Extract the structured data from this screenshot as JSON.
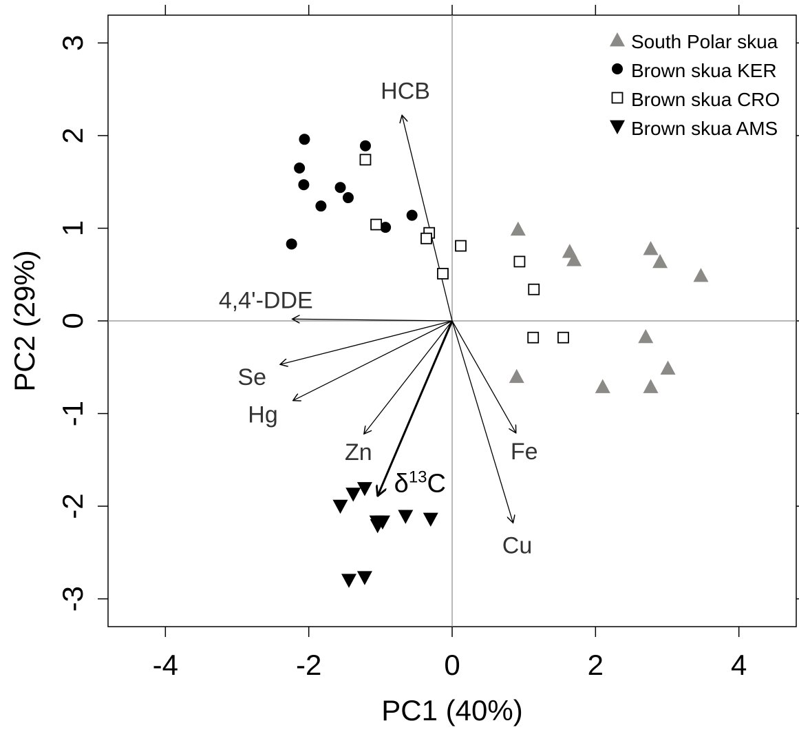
{
  "chart_data": {
    "type": "scatter",
    "title": "",
    "xlabel": "PC1 (40%)",
    "ylabel": "PC2 (29%)",
    "xlim": [
      -4.8,
      4.8
    ],
    "ylim": [
      -3.3,
      3.3
    ],
    "xticks": [
      -4,
      -2,
      0,
      2,
      4
    ],
    "yticks": [
      -3,
      -2,
      -1,
      0,
      1,
      2,
      3
    ],
    "xtick_labels": [
      "-4",
      "-2",
      "0",
      "2",
      "4"
    ],
    "ytick_labels": [
      "-3",
      "-2",
      "-1",
      "0",
      "1",
      "2",
      "3"
    ],
    "grid": false,
    "reference_lines": {
      "x": 0,
      "y": 0
    },
    "legend_position": "top-right",
    "series": [
      {
        "name": "South Polar skua",
        "marker": "triangle-up",
        "color": "#8c8a87",
        "points": [
          [
            0.92,
            0.99
          ],
          [
            1.64,
            0.75
          ],
          [
            1.7,
            0.66
          ],
          [
            2.77,
            0.78
          ],
          [
            2.9,
            0.64
          ],
          [
            3.47,
            0.49
          ],
          [
            0.9,
            -0.6
          ],
          [
            2.7,
            -0.17
          ],
          [
            3.01,
            -0.51
          ],
          [
            2.1,
            -0.71
          ],
          [
            2.77,
            -0.71
          ]
        ]
      },
      {
        "name": "Brown skua KER",
        "marker": "circle-filled",
        "color": "#000000",
        "points": [
          [
            -2.06,
            1.96
          ],
          [
            -1.21,
            1.89
          ],
          [
            -2.13,
            1.65
          ],
          [
            -2.07,
            1.47
          ],
          [
            -1.56,
            1.44
          ],
          [
            -1.45,
            1.33
          ],
          [
            -1.83,
            1.24
          ],
          [
            -0.56,
            1.14
          ],
          [
            -0.93,
            1.01
          ],
          [
            -2.24,
            0.83
          ]
        ]
      },
      {
        "name": "Brown skua CRO",
        "marker": "square-open",
        "color": "#000000",
        "points": [
          [
            -1.21,
            1.74
          ],
          [
            -1.06,
            1.04
          ],
          [
            -0.32,
            0.95
          ],
          [
            -0.36,
            0.89
          ],
          [
            0.12,
            0.81
          ],
          [
            0.94,
            0.64
          ],
          [
            -0.13,
            0.51
          ],
          [
            1.14,
            0.34
          ],
          [
            1.13,
            -0.18
          ],
          [
            1.55,
            -0.18
          ]
        ]
      },
      {
        "name": "Brown skua AMS",
        "marker": "triangle-down",
        "color": "#000000",
        "points": [
          [
            -1.38,
            -1.87
          ],
          [
            -1.22,
            -1.81
          ],
          [
            -1.56,
            -2.0
          ],
          [
            -1.05,
            -2.17
          ],
          [
            -0.97,
            -2.17
          ],
          [
            -1.04,
            -2.21
          ],
          [
            -0.65,
            -2.11
          ],
          [
            -0.3,
            -2.14
          ],
          [
            -1.44,
            -2.8
          ],
          [
            -1.22,
            -2.77
          ]
        ]
      }
    ],
    "loadings": [
      {
        "label": "HCB",
        "x": -0.7,
        "y": 2.22,
        "bold": false
      },
      {
        "label": "4,4'-DDE",
        "x": -2.23,
        "y": 0.02,
        "bold": false
      },
      {
        "label": "Se",
        "x": -2.4,
        "y": -0.47,
        "bold": false
      },
      {
        "label": "Hg",
        "x": -2.22,
        "y": -0.86,
        "bold": false
      },
      {
        "label": "Zn",
        "x": -1.23,
        "y": -1.22,
        "bold": false
      },
      {
        "label": "δ13C",
        "label_main": "δ",
        "label_sup": "13",
        "label_tail": "C",
        "x": -1.04,
        "y": -1.89,
        "bold": true
      },
      {
        "label": "Fe",
        "x": 0.89,
        "y": -1.21,
        "bold": false
      },
      {
        "label": "Cu",
        "x": 0.85,
        "y": -2.18,
        "bold": false
      }
    ]
  }
}
